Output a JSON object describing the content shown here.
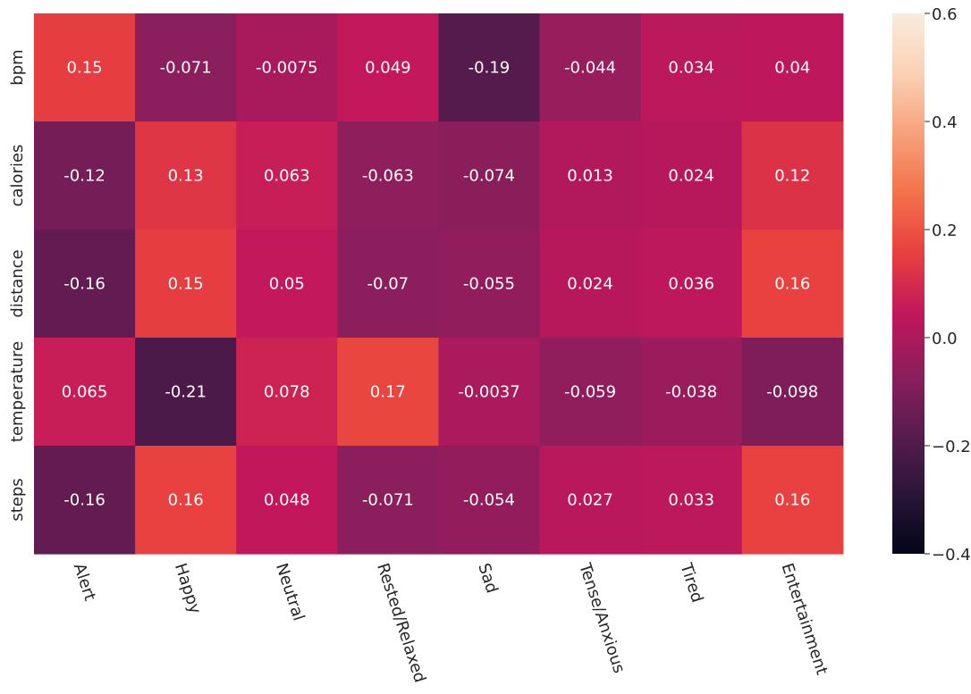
{
  "chart_data": {
    "type": "heatmap",
    "rows": [
      "bpm",
      "calories",
      "distance",
      "temperature",
      "steps"
    ],
    "columns": [
      "Alert",
      "Happy",
      "Neutral",
      "Rested/Relaxed",
      "Sad",
      "Tense/Anxious",
      "Tired",
      "Entertainment"
    ],
    "values": [
      [
        0.15,
        -0.071,
        -0.0075,
        0.049,
        -0.19,
        -0.044,
        0.034,
        0.04
      ],
      [
        -0.12,
        0.13,
        0.063,
        -0.063,
        -0.074,
        0.013,
        0.024,
        0.12
      ],
      [
        -0.16,
        0.15,
        0.05,
        -0.07,
        -0.055,
        0.024,
        0.036,
        0.16
      ],
      [
        0.065,
        -0.21,
        0.078,
        0.17,
        -0.0037,
        -0.059,
        -0.038,
        -0.098
      ],
      [
        -0.16,
        0.16,
        0.048,
        -0.071,
        -0.054,
        0.027,
        0.033,
        0.16
      ]
    ],
    "labels": [
      [
        "0.15",
        "-0.071",
        "-0.0075",
        "0.049",
        "-0.19",
        "-0.044",
        "0.034",
        "0.04"
      ],
      [
        "-0.12",
        "0.13",
        "0.063",
        "-0.063",
        "-0.074",
        "0.013",
        "0.024",
        "0.12"
      ],
      [
        "-0.16",
        "0.15",
        "0.05",
        "-0.07",
        "-0.055",
        "0.024",
        "0.036",
        "0.16"
      ],
      [
        "0.065",
        "-0.21",
        "0.078",
        "0.17",
        "-0.0037",
        "-0.059",
        "-0.038",
        "-0.098"
      ],
      [
        "-0.16",
        "0.16",
        "0.048",
        "-0.071",
        "-0.054",
        "0.027",
        "0.033",
        "0.16"
      ]
    ],
    "colorbar": {
      "vmin": -0.4,
      "vmax": 0.6,
      "ticks": [
        -0.4,
        -0.2,
        0.0,
        0.2,
        0.4,
        0.6
      ],
      "tick_labels": [
        "−0.4",
        "−0.2",
        "0.0",
        "0.2",
        "0.4",
        "0.6"
      ]
    },
    "colormap": "rocket",
    "colormap_stops": [
      "#03051a",
      "#2a1638",
      "#5a1c50",
      "#8d1e5c",
      "#c1175c",
      "#e83f3f",
      "#f3714a",
      "#f7a17b",
      "#fbd1b4",
      "#faebdd"
    ],
    "annotation_color": "#ffffff"
  }
}
